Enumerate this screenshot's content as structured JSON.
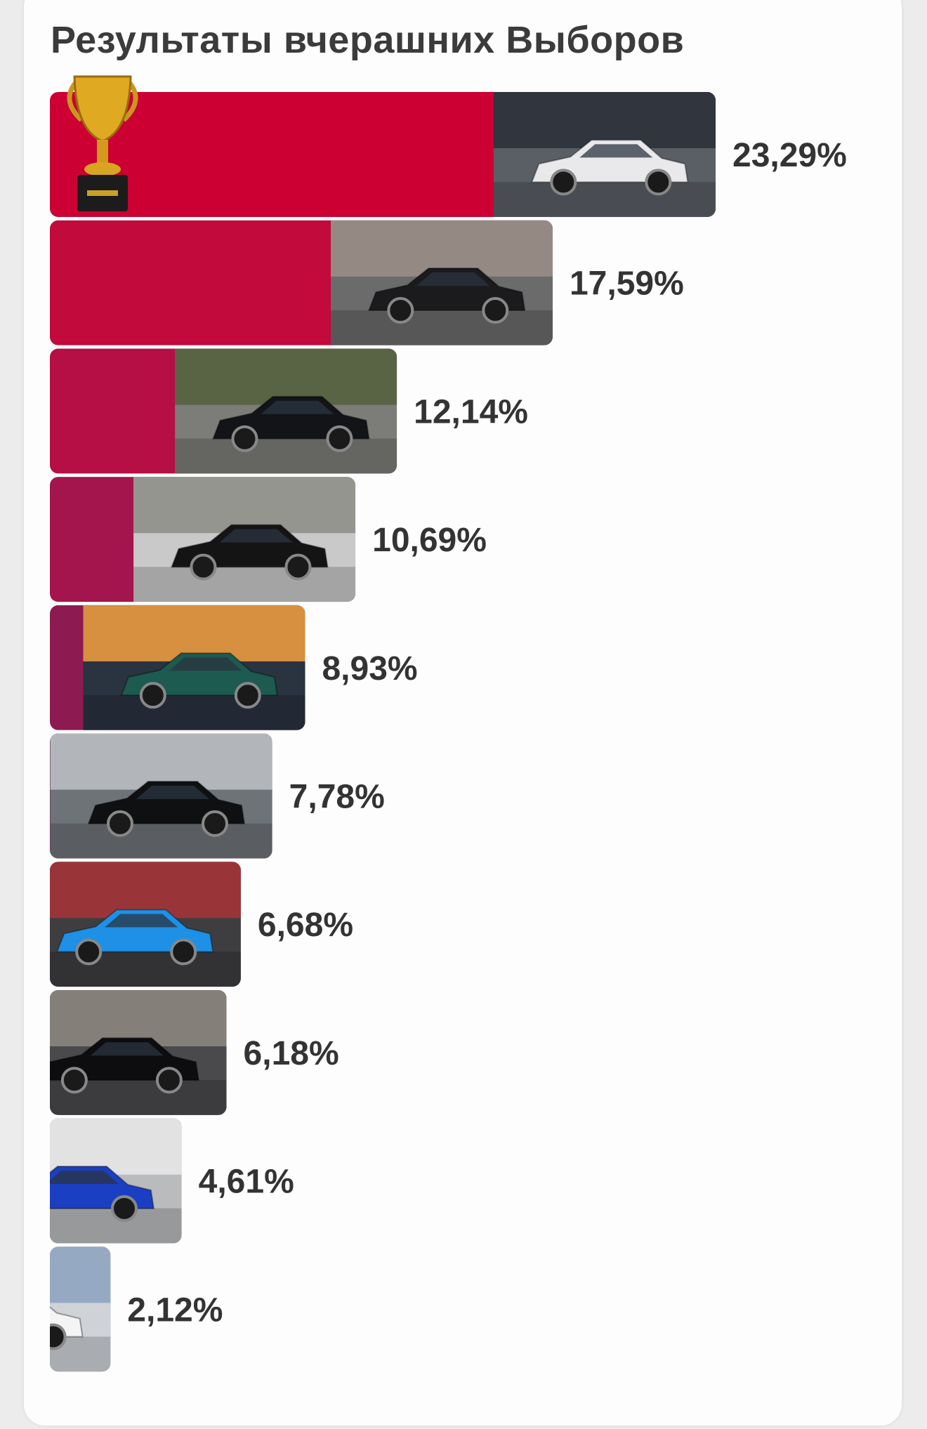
{
  "page": {
    "title": "Результаты вчерашних Выборов"
  },
  "chart_data": {
    "type": "bar",
    "orientation": "horizontal",
    "title": "Результаты вчерашних Выборов",
    "xlim": [
      0,
      23.29
    ],
    "grid": false,
    "legend": "none",
    "winner_badge": "trophy-icon",
    "bars": [
      {
        "value": 23.29,
        "label": "23,29%",
        "color": "#cc0033",
        "photo_tone": "#5a5f66",
        "car_tone": "#e9e9ec",
        "bg_tone": "#2c3138"
      },
      {
        "value": 17.59,
        "label": "17,59%",
        "color": "#c20a3c",
        "photo_tone": "#6b6b6b",
        "car_tone": "#1b1b1e",
        "bg_tone": "#9a8e86"
      },
      {
        "value": 12.14,
        "label": "12,14%",
        "color": "#b60f45",
        "photo_tone": "#7c7d78",
        "car_tone": "#121418",
        "bg_tone": "#55623e"
      },
      {
        "value": 10.69,
        "label": "10,69%",
        "color": "#a3154c",
        "photo_tone": "#c9c9c9",
        "car_tone": "#141414",
        "bg_tone": "#8f8f8a"
      },
      {
        "value": 8.93,
        "label": "8,93%",
        "color": "#8d1b52",
        "photo_tone": "#2a3340",
        "car_tone": "#1d5a50",
        "bg_tone": "#e99a40"
      },
      {
        "value": 7.78,
        "label": "7,78%",
        "color": "#762660",
        "photo_tone": "#6e7378",
        "car_tone": "#0f1012",
        "bg_tone": "#b9bec2"
      },
      {
        "value": 6.68,
        "label": "6,68%",
        "color": "#602d6c",
        "photo_tone": "#3e3e40",
        "car_tone": "#1e90e6",
        "bg_tone": "#a33438"
      },
      {
        "value": 6.18,
        "label": "6,18%",
        "color": "#4d3273",
        "photo_tone": "#4a4a4c",
        "car_tone": "#0d0d0f",
        "bg_tone": "#8c8580"
      },
      {
        "value": 4.61,
        "label": "4,61%",
        "color": "#2f3f82",
        "photo_tone": "#b9bbbd",
        "car_tone": "#1b3fc2",
        "bg_tone": "#e7e7e7"
      },
      {
        "value": 2.12,
        "label": "2,12%",
        "color": "#22508f",
        "photo_tone": "#cfd3d8",
        "car_tone": "#f4f4f4",
        "bg_tone": "#8ea4c0"
      }
    ]
  }
}
